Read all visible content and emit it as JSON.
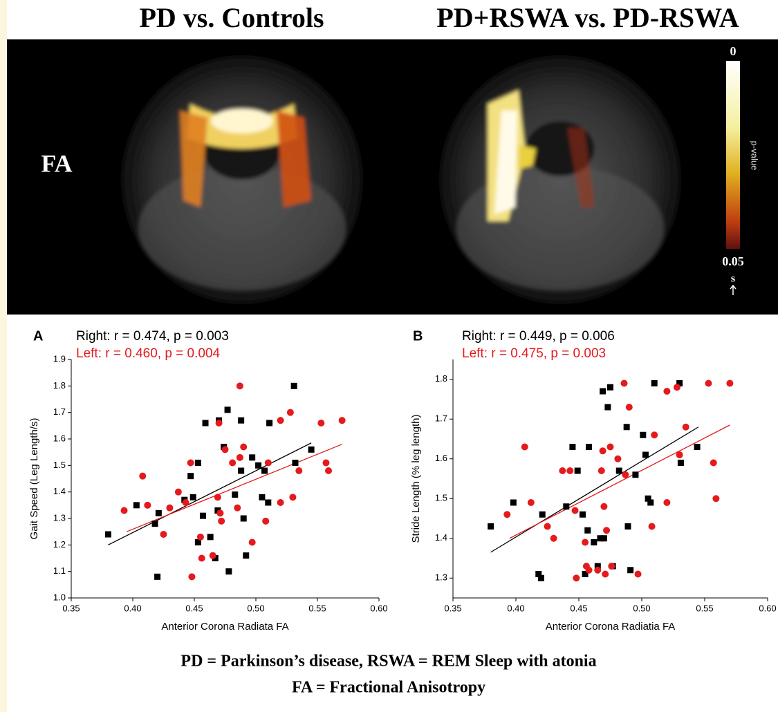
{
  "header": {
    "titles": [
      "PD vs. Controls",
      "PD+RSWA vs. PD-RSWA"
    ]
  },
  "brain_panel": {
    "row_label": "FA",
    "colorbar": {
      "title": "p-value",
      "range": [
        0,
        0.05
      ],
      "ticks": [
        0,
        0.05
      ],
      "orientation": "s"
    }
  },
  "chart_data": [
    {
      "type": "scatter",
      "label": "A",
      "xlabel": "Anterior Corona Radiata FA",
      "ylabel": "Gait Speed (Leg Length/s)",
      "xlim": [
        0.35,
        0.6
      ],
      "ylim": [
        1.0,
        1.9
      ],
      "xticks": [
        0.35,
        {
          "value": 0.4,
          "label": "0.40"
        },
        0.45,
        {
          "value": 0.5,
          "label": "0.50"
        },
        0.55,
        {
          "value": 0.6,
          "label": "0.60"
        }
      ],
      "yticks": [
        {
          "value": 1.0,
          "label": "1.0"
        },
        1.1,
        1.2,
        1.3,
        1.4,
        1.5,
        1.6,
        1.7,
        1.8,
        1.9
      ],
      "series": [
        {
          "name": "Right: r = 0.474, p = 0.003",
          "color": "#000000",
          "marker": "square",
          "x": [
            0.38,
            0.403,
            0.418,
            0.42,
            0.421,
            0.442,
            0.447,
            0.449,
            0.453,
            0.453,
            0.457,
            0.459,
            0.463,
            0.467,
            0.469,
            0.47,
            0.474,
            0.477,
            0.478,
            0.483,
            0.488,
            0.488,
            0.49,
            0.492,
            0.497,
            0.502,
            0.505,
            0.507,
            0.51,
            0.511,
            0.531,
            0.532,
            0.545
          ],
          "values": [
            1.24,
            1.35,
            1.28,
            1.08,
            1.32,
            1.37,
            1.46,
            1.38,
            1.51,
            1.21,
            1.31,
            1.66,
            1.23,
            1.15,
            1.33,
            1.67,
            1.57,
            1.71,
            1.1,
            1.39,
            1.48,
            1.67,
            1.3,
            1.16,
            1.53,
            1.5,
            1.38,
            1.48,
            1.36,
            1.66,
            1.8,
            1.51,
            1.56
          ]
        },
        {
          "name": "Left: r = 0.460, p = 0.004",
          "color": "#e41a1c",
          "marker": "circle",
          "x": [
            0.393,
            0.408,
            0.412,
            0.425,
            0.43,
            0.437,
            0.443,
            0.447,
            0.448,
            0.455,
            0.456,
            0.465,
            0.469,
            0.47,
            0.471,
            0.472,
            0.475,
            0.481,
            0.485,
            0.487,
            0.487,
            0.49,
            0.497,
            0.508,
            0.51,
            0.52,
            0.52,
            0.528,
            0.53,
            0.535,
            0.553,
            0.557,
            0.559,
            0.57
          ],
          "values": [
            1.33,
            1.46,
            1.35,
            1.24,
            1.34,
            1.4,
            1.36,
            1.51,
            1.08,
            1.23,
            1.15,
            1.16,
            1.38,
            1.66,
            1.32,
            1.29,
            1.56,
            1.51,
            1.34,
            1.53,
            1.8,
            1.57,
            1.21,
            1.29,
            1.51,
            1.67,
            1.36,
            1.7,
            1.38,
            1.48,
            1.66,
            1.51,
            1.48,
            1.67
          ]
        }
      ],
      "fit_lines": [
        {
          "color": "#000000",
          "x": [
            0.38,
            0.545
          ],
          "values": [
            1.2,
            1.585
          ]
        },
        {
          "color": "#e41a1c",
          "x": [
            0.395,
            0.57
          ],
          "values": [
            1.25,
            1.58
          ]
        }
      ]
    },
    {
      "type": "scatter",
      "label": "B",
      "xlabel": "Anterior Corona Radiatia FA",
      "ylabel": "Stride Length (% leg length)",
      "xlim": [
        0.35,
        0.6
      ],
      "ylim": [
        1.25,
        1.85
      ],
      "xticks": [
        0.35,
        {
          "value": 0.4,
          "label": "0.40"
        },
        0.45,
        {
          "value": 0.5,
          "label": "0.50"
        },
        0.55,
        {
          "value": 0.6,
          "label": "0.60"
        }
      ],
      "yticks": [
        1.3,
        1.4,
        1.5,
        1.6,
        1.7,
        1.8
      ],
      "series": [
        {
          "name": "Right: r = 0.449, p = 0.006",
          "color": "#000000",
          "marker": "square",
          "x": [
            0.38,
            0.398,
            0.418,
            0.42,
            0.421,
            0.44,
            0.445,
            0.449,
            0.453,
            0.455,
            0.457,
            0.458,
            0.462,
            0.465,
            0.467,
            0.469,
            0.47,
            0.473,
            0.475,
            0.477,
            0.482,
            0.488,
            0.489,
            0.491,
            0.495,
            0.501,
            0.503,
            0.505,
            0.507,
            0.51,
            0.53,
            0.531,
            0.544
          ],
          "values": [
            1.43,
            1.49,
            1.31,
            1.3,
            1.46,
            1.48,
            1.63,
            1.57,
            1.46,
            1.31,
            1.42,
            1.63,
            1.39,
            1.33,
            1.4,
            1.77,
            1.4,
            1.73,
            1.78,
            1.33,
            1.57,
            1.68,
            1.43,
            1.32,
            1.56,
            1.66,
            1.61,
            1.5,
            1.49,
            1.79,
            1.79,
            1.59,
            1.63
          ]
        },
        {
          "name": "Left: r = 0.475, p = 0.003",
          "color": "#e41a1c",
          "marker": "circle",
          "x": [
            0.393,
            0.407,
            0.412,
            0.425,
            0.43,
            0.437,
            0.443,
            0.447,
            0.448,
            0.455,
            0.456,
            0.458,
            0.465,
            0.468,
            0.469,
            0.47,
            0.471,
            0.472,
            0.475,
            0.476,
            0.481,
            0.486,
            0.487,
            0.49,
            0.497,
            0.508,
            0.51,
            0.52,
            0.52,
            0.528,
            0.53,
            0.535,
            0.553,
            0.557,
            0.559,
            0.57
          ],
          "values": [
            1.46,
            1.63,
            1.49,
            1.43,
            1.4,
            1.57,
            1.57,
            1.47,
            1.3,
            1.39,
            1.33,
            1.32,
            1.32,
            1.57,
            1.62,
            1.48,
            1.31,
            1.42,
            1.63,
            1.33,
            1.6,
            1.79,
            1.56,
            1.73,
            1.31,
            1.43,
            1.66,
            1.49,
            1.77,
            1.78,
            1.61,
            1.68,
            1.79,
            1.59,
            1.5,
            1.79
          ]
        }
      ],
      "fit_lines": [
        {
          "color": "#000000",
          "x": [
            0.38,
            0.545
          ],
          "values": [
            1.365,
            1.68
          ]
        },
        {
          "color": "#e41a1c",
          "x": [
            0.395,
            0.57
          ],
          "values": [
            1.4,
            1.685
          ]
        }
      ]
    }
  ],
  "footer": {
    "lines": [
      "PD = Parkinson’s disease, RSWA = REM Sleep with atonia",
      "FA = Fractional Anisotropy"
    ]
  }
}
